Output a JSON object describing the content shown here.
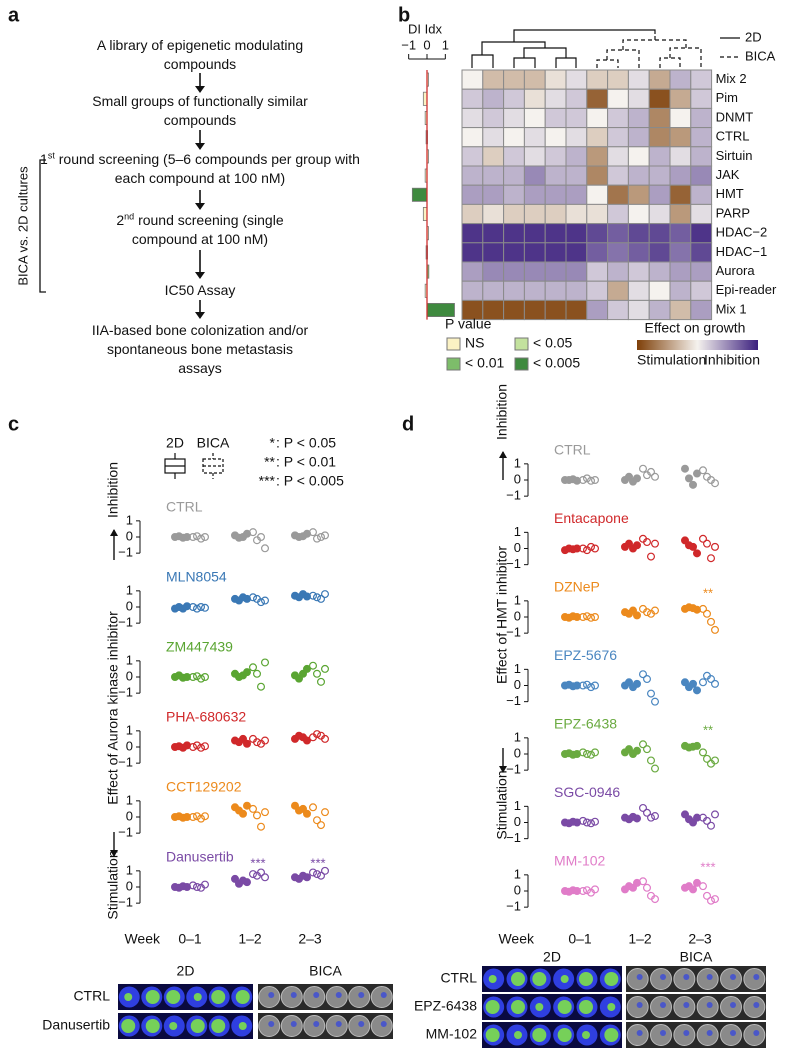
{
  "panel_labels": [
    "a",
    "b",
    "c",
    "d"
  ],
  "flowchart": {
    "steps": [
      {
        "text": "A library of epigenetic modulating compounds"
      },
      {
        "text": "Small groups of functionally similar compounds"
      },
      {
        "number": "1",
        "suffix": "st",
        "text": " round screening (5–6 compounds per group with each compound at 100 nM)"
      },
      {
        "number": "2",
        "suffix": "nd",
        "text": " round screening (single compound at 100 nM)"
      },
      {
        "text": "IC50 Assay"
      },
      {
        "text": "IIA-based bone colonization and/or spontaneous bone metastasis assays"
      }
    ],
    "bracket_label": "BICA vs. 2D cultures"
  },
  "chart_data": [
    {
      "type": "heatmap",
      "rows": [
        "Mix 2",
        "Pim",
        "DNMT",
        "CTRL",
        "Sirtuin",
        "JAK",
        "HMT",
        "PARP",
        "HDAC−2",
        "HDAC−1",
        "Aurora",
        "Epi-reader",
        "Mix 1"
      ],
      "values": [
        [
          0.0,
          -0.3,
          -0.3,
          -0.3,
          -0.1,
          0.1,
          -0.2,
          -0.2,
          0.1,
          -0.4,
          0.3,
          0.2
        ],
        [
          0.2,
          0.3,
          0.2,
          -0.1,
          0.1,
          0.2,
          -0.8,
          0.0,
          0.1,
          -0.9,
          -0.4,
          0.2
        ],
        [
          0.1,
          0.2,
          0.1,
          0.0,
          0.2,
          0.2,
          0.0,
          0.2,
          0.3,
          -0.6,
          0.0,
          0.3
        ],
        [
          0.0,
          0.1,
          0.0,
          0.1,
          0.0,
          0.1,
          -0.2,
          0.2,
          0.3,
          -0.6,
          -0.5,
          0.3
        ],
        [
          0.2,
          -0.2,
          0.2,
          0.1,
          0.2,
          0.3,
          -0.5,
          0.1,
          0.0,
          0.3,
          0.1,
          0.3
        ],
        [
          0.3,
          0.3,
          0.3,
          0.5,
          0.3,
          0.3,
          -0.6,
          0.2,
          0.3,
          0.3,
          0.4,
          0.5
        ],
        [
          0.4,
          0.4,
          0.3,
          0.4,
          0.4,
          0.4,
          0.0,
          -0.7,
          -0.5,
          0.4,
          -0.8,
          0.3
        ],
        [
          -0.2,
          -0.1,
          -0.2,
          -0.2,
          -0.2,
          -0.1,
          -0.1,
          0.2,
          0.0,
          0.1,
          -0.5,
          0.1
        ],
        [
          0.9,
          0.9,
          0.9,
          0.9,
          0.9,
          0.9,
          0.8,
          0.7,
          0.8,
          0.8,
          0.7,
          0.9
        ],
        [
          0.9,
          0.9,
          0.9,
          0.9,
          0.9,
          0.9,
          0.7,
          0.6,
          0.7,
          0.8,
          0.6,
          0.8
        ],
        [
          0.4,
          0.5,
          0.5,
          0.5,
          0.5,
          0.5,
          0.2,
          0.3,
          0.2,
          0.3,
          0.4,
          0.4
        ],
        [
          0.3,
          0.3,
          0.3,
          0.3,
          0.3,
          0.3,
          0.2,
          -0.4,
          0.1,
          0.0,
          0.3,
          0.2
        ],
        [
          -0.9,
          -0.9,
          -0.9,
          -0.9,
          -0.9,
          -0.9,
          0.4,
          0.2,
          0.1,
          0.3,
          -0.3,
          0.4
        ]
      ],
      "zlim": [
        -1,
        1
      ],
      "colors": {
        "low": "#7e3f08",
        "mid": "#f5f2ee",
        "high": "#3b1f7e"
      },
      "legend_title": "Effect on growth",
      "legend_low": "Stimulation",
      "legend_high": "Inhibition",
      "dendrogram_legend": [
        "2D",
        "BICA"
      ]
    },
    {
      "type": "bar",
      "orientation": "horizontal",
      "title": "DI Idx",
      "xlim": [
        -1.2,
        1.8
      ],
      "xticks": [
        {
          "value": -1,
          "label": "−1"
        },
        0,
        1
      ],
      "values": [
        0.05,
        -0.2,
        -0.1,
        -0.05,
        0.0,
        -0.1,
        -0.8,
        -0.2,
        0.0,
        -0.05,
        0.1,
        -0.1,
        1.5
      ],
      "p_group": [
        0,
        0,
        0,
        0,
        0,
        0,
        3,
        0,
        0,
        1,
        2,
        0,
        3
      ],
      "zero_line_color": "#d03030",
      "legend_title": "P value",
      "legend": [
        {
          "label": "NS",
          "color": "#fbf2c4"
        },
        {
          "label": "< 0.05",
          "color": "#c3e29e"
        },
        {
          "label": "< 0.01",
          "color": "#7dbd6a"
        },
        {
          "label": "< 0.005",
          "color": "#3f8a3f"
        }
      ]
    },
    {
      "type": "strip",
      "ylabel": "Effect of Aurora kinase inhibitor",
      "ylabel_high": "Inhibition",
      "ylabel_low": "Stimulation",
      "xlabel": "Week",
      "categories": [
        "0–1",
        "1–2",
        "2–3"
      ],
      "ylim": [
        -1.3,
        1.3
      ],
      "yticks": [
        {
          "value": -1,
          "label": "−1"
        },
        0,
        1
      ],
      "legend": {
        "series": [
          "2D",
          "BICA"
        ],
        "significance": [
          {
            "symbol": "*",
            "text": ": P < 0.05"
          },
          {
            "symbol": "**",
            "text": ": P < 0.01"
          },
          {
            "symbol": "***",
            "text": ": P < 0.005"
          }
        ]
      },
      "panels": [
        {
          "name": "CTRL",
          "color": "#9a9a9a",
          "d2": [
            [
              0,
              0.05,
              -0.05,
              0
            ],
            [
              0.1,
              -0.05,
              0,
              0.2
            ],
            [
              0.1,
              0,
              0.05,
              0.2
            ]
          ],
          "bica": [
            [
              0,
              0.05,
              -0.1,
              0
            ],
            [
              0.3,
              -0.2,
              0,
              -0.7
            ],
            [
              0.3,
              -0.1,
              0,
              0.1
            ]
          ],
          "annotations": []
        },
        {
          "name": "MLN8054",
          "color": "#3a78b5",
          "d2": [
            [
              -0.1,
              0,
              -0.1,
              0.05
            ],
            [
              0.5,
              0.4,
              0.6,
              0.5
            ],
            [
              0.7,
              0.6,
              0.8,
              0.65
            ]
          ],
          "bica": [
            [
              0,
              -0.1,
              0,
              -0.05
            ],
            [
              0.6,
              0.5,
              0.3,
              0.4
            ],
            [
              0.7,
              0.6,
              0.5,
              0.8
            ]
          ],
          "annotations": []
        },
        {
          "name": "ZM447439",
          "color": "#5aa532",
          "d2": [
            [
              0,
              0.1,
              -0.05,
              0
            ],
            [
              0.2,
              0,
              0.1,
              0.3
            ],
            [
              0.1,
              -0.1,
              0.2,
              0.5
            ]
          ],
          "bica": [
            [
              0,
              0.05,
              -0.1,
              0
            ],
            [
              0.6,
              0.2,
              -0.6,
              0.9
            ],
            [
              0.7,
              0.2,
              -0.3,
              0.5
            ]
          ],
          "annotations": []
        },
        {
          "name": "PHA-680632",
          "color": "#d0282a",
          "d2": [
            [
              0,
              0.05,
              -0.05,
              0.1
            ],
            [
              0.4,
              0.3,
              0.5,
              0.2
            ],
            [
              0.5,
              0.7,
              0.6,
              0.4
            ]
          ],
          "bica": [
            [
              0,
              0.1,
              -0.05,
              0.05
            ],
            [
              0.5,
              0.3,
              0.2,
              0.4
            ],
            [
              0.6,
              0.8,
              0.7,
              0.5
            ]
          ],
          "annotations": []
        },
        {
          "name": "CCT129202",
          "color": "#ec8a1c",
          "d2": [
            [
              0,
              0.05,
              -0.05,
              0
            ],
            [
              0.6,
              0.4,
              0.2,
              0.7
            ],
            [
              0.7,
              0.4,
              0.5,
              0.2
            ]
          ],
          "bica": [
            [
              0,
              0.05,
              -0.1,
              0.05
            ],
            [
              0.5,
              0.1,
              -0.6,
              0.3
            ],
            [
              0.6,
              -0.2,
              -0.5,
              0.3
            ]
          ],
          "annotations": []
        },
        {
          "name": "Danusertib",
          "color": "#7a4aa5",
          "d2": [
            [
              0,
              -0.05,
              0.05,
              0
            ],
            [
              0.5,
              0.2,
              0.4,
              0.3
            ],
            [
              0.6,
              0.5,
              0.7,
              0.6
            ]
          ],
          "bica": [
            [
              0.1,
              0,
              -0.05,
              0.15
            ],
            [
              0.8,
              0.7,
              0.9,
              0.6
            ],
            [
              0.9,
              0.8,
              0.7,
              1.0
            ]
          ],
          "annotations": [
            {
              "category": 1,
              "text": "***"
            },
            {
              "category": 2,
              "text": "***"
            }
          ]
        }
      ],
      "images": {
        "columns": [
          "2D",
          "BICA"
        ],
        "rows": [
          "CTRL",
          "Danusertib"
        ]
      }
    },
    {
      "type": "strip",
      "ylabel": "Effect of HMT inhibitor",
      "ylabel_high": "Inhibition",
      "ylabel_low": "Stimulation",
      "xlabel": "Week",
      "categories": [
        "0–1",
        "1–2",
        "2–3"
      ],
      "ylim": [
        -1.3,
        1.3
      ],
      "yticks": [
        {
          "value": -1,
          "label": "−1"
        },
        0,
        1
      ],
      "panels": [
        {
          "name": "CTRL",
          "color": "#9a9a9a",
          "d2": [
            [
              0,
              0,
              0.05,
              -0.05
            ],
            [
              0,
              0.2,
              -0.1,
              0.1
            ],
            [
              0.7,
              0.1,
              -0.3,
              0.4
            ]
          ],
          "bica": [
            [
              0,
              0.1,
              -0.05,
              0
            ],
            [
              0.7,
              0.3,
              0.5,
              0.2
            ],
            [
              0.6,
              0.2,
              0,
              -0.2
            ]
          ],
          "annotations": []
        },
        {
          "name": "Entacapone",
          "color": "#d0282a",
          "d2": [
            [
              -0.1,
              0,
              -0.05,
              0
            ],
            [
              0.1,
              0.3,
              0,
              0.2
            ],
            [
              0.5,
              0.2,
              0.1,
              -0.3
            ]
          ],
          "bica": [
            [
              0,
              -0.1,
              0.1,
              0
            ],
            [
              0.6,
              0.4,
              -0.5,
              0.3
            ],
            [
              0.6,
              0.3,
              -0.6,
              0.1
            ]
          ],
          "annotations": []
        },
        {
          "name": "DZNeP",
          "color": "#ec8a1c",
          "d2": [
            [
              0,
              -0.05,
              0.05,
              0
            ],
            [
              0.3,
              0.2,
              0.4,
              0.1
            ],
            [
              0.5,
              0.6,
              0.55,
              0.45
            ]
          ],
          "bica": [
            [
              0,
              0.05,
              -0.05,
              0
            ],
            [
              0.5,
              0.3,
              0.2,
              0.4
            ],
            [
              0.5,
              0.2,
              -0.3,
              -0.8
            ]
          ],
          "annotations": [
            {
              "category": 2,
              "text": "**"
            }
          ]
        },
        {
          "name": "EPZ-5676",
          "color": "#4a86c0",
          "d2": [
            [
              0,
              0.05,
              -0.05,
              0
            ],
            [
              0,
              0.2,
              -0.1,
              0.1
            ],
            [
              0.2,
              -0.1,
              0.1,
              -0.3
            ]
          ],
          "bica": [
            [
              0,
              0.05,
              -0.1,
              0
            ],
            [
              0.7,
              0.4,
              -0.5,
              -1.0
            ],
            [
              0.2,
              0.6,
              0.4,
              0.1
            ]
          ],
          "annotations": []
        },
        {
          "name": "EPZ-6438",
          "color": "#6aaa40",
          "d2": [
            [
              0,
              0.05,
              -0.05,
              0
            ],
            [
              0.1,
              0.3,
              0,
              0.2
            ],
            [
              0.5,
              0.4,
              0.45,
              0.5
            ]
          ],
          "bica": [
            [
              0.1,
              0,
              -0.05,
              0.1
            ],
            [
              0.6,
              0.3,
              -0.4,
              -0.9
            ],
            [
              0.1,
              -0.3,
              -0.6,
              -0.4
            ]
          ],
          "annotations": [
            {
              "category": 2,
              "text": "**"
            }
          ]
        },
        {
          "name": "SGC-0946",
          "color": "#7a4aa5",
          "d2": [
            [
              0,
              -0.05,
              0.05,
              0
            ],
            [
              0.3,
              0.2,
              0.35,
              0.25
            ],
            [
              0.5,
              0.2,
              0,
              0.3
            ]
          ],
          "bica": [
            [
              0.1,
              0,
              -0.05,
              0.05
            ],
            [
              0.9,
              0.6,
              0.3,
              0.4
            ],
            [
              0.3,
              0.1,
              -0.2,
              0.5
            ]
          ],
          "annotations": []
        },
        {
          "name": "MM-102",
          "color": "#e07cc8",
          "d2": [
            [
              0,
              -0.05,
              0.05,
              0
            ],
            [
              0.1,
              0.3,
              0.2,
              0.5
            ],
            [
              0.2,
              0.3,
              0.1,
              0.5
            ]
          ],
          "bica": [
            [
              0,
              0.05,
              -0.1,
              0.1
            ],
            [
              0.6,
              0.2,
              -0.3,
              -0.5
            ],
            [
              0.3,
              -0.3,
              -0.6,
              -0.5
            ]
          ],
          "annotations": [
            {
              "category": 2,
              "text": "***"
            }
          ]
        }
      ],
      "images": {
        "columns": [
          "2D",
          "BICA"
        ],
        "rows": [
          "CTRL",
          "EPZ-6438",
          "MM-102"
        ]
      }
    }
  ]
}
